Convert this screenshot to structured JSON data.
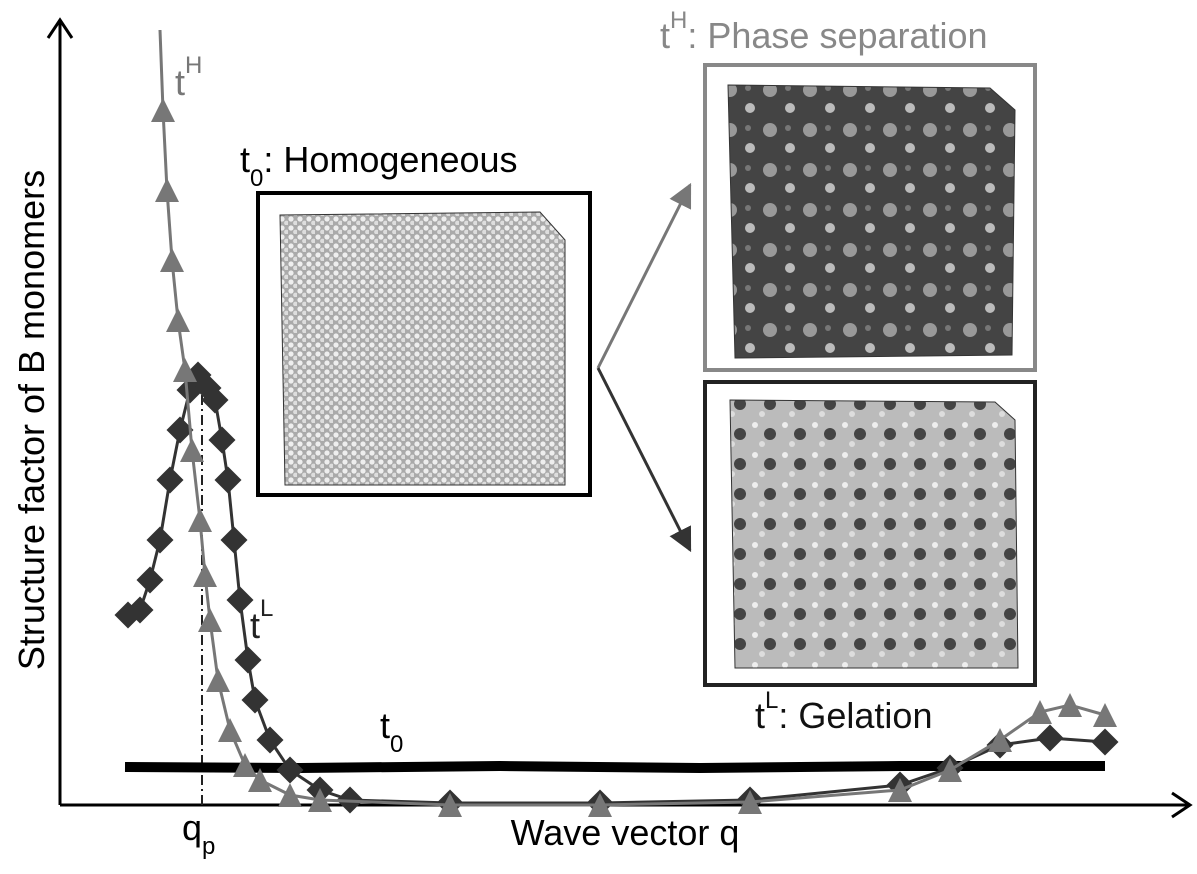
{
  "axes": {
    "y_label": "Structure factor of B monomers",
    "x_label": "Wave vector q",
    "q_peak": {
      "base": "q",
      "sub": "p"
    }
  },
  "curves": [
    {
      "base": "t",
      "sup": "H"
    },
    {
      "base": "t",
      "sup": "L"
    },
    {
      "base": "t",
      "sub": "0"
    }
  ],
  "panels": [
    {
      "base": "t",
      "sub": "0",
      "caption": ": Homogeneous"
    },
    {
      "base": "t",
      "sup": "H",
      "caption": ": Phase separation"
    },
    {
      "base": "t",
      "sup": "L",
      "caption": ": Gelation"
    }
  ]
}
